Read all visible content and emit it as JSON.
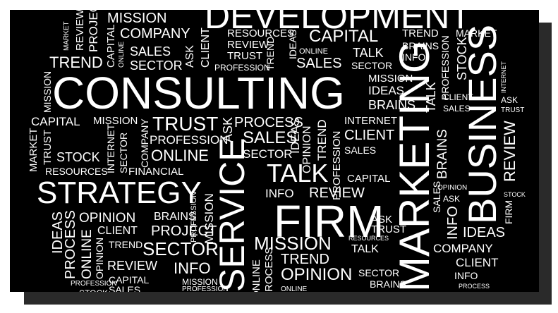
{
  "colors": {
    "background": "#000000",
    "text": "#ffffff",
    "page": "#ffffff",
    "shadow": "#2a2a2a"
  },
  "words": {
    "development": "DEVELOPMENT",
    "consulting": "CONSULTING",
    "strategy": "STRATEGY",
    "service": "SERVICE",
    "firm": "FIRM",
    "marketing": "MARKETING",
    "business": "BUSINESS",
    "talk": "TALK",
    "mission": "MISSION",
    "company": "COMPANY",
    "capital": "CAPITAL",
    "trend": "TREND",
    "sales": "SALES",
    "sector": "SECTOR",
    "trust": "TRUST",
    "online": "ONLINE",
    "profession": "PROFESSION",
    "project": "PROJECT",
    "opinion": "OPINION",
    "brains": "BRAINS",
    "client": "CLIENT",
    "review": "REVIEW",
    "ideas": "IDEAS",
    "process": "PROCESS",
    "stock": "STOCK",
    "resources": "RESOURCES",
    "info": "INFO",
    "internet": "INTERNET",
    "financial": "FINANCIAL",
    "market": "MARKET",
    "ask": "ASK"
  }
}
